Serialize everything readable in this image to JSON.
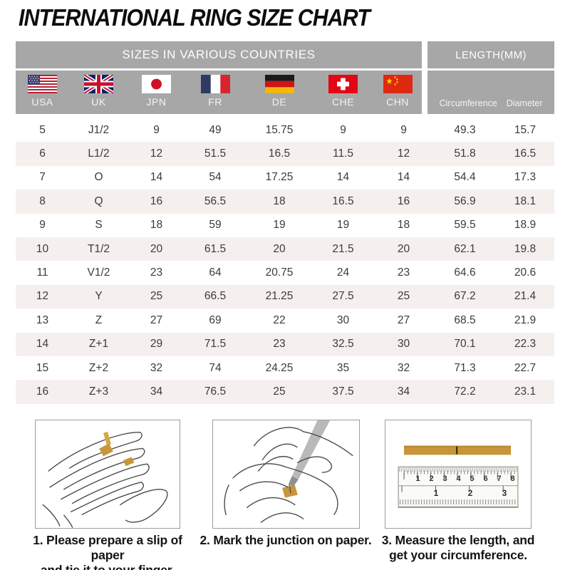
{
  "chart_data": {
    "type": "table",
    "title": "INTERNATIONAL RING SIZE CHART",
    "column_groups": [
      "SIZES IN VARIOUS COUNTRIES",
      "LENGTH(MM)"
    ],
    "columns": [
      "USA",
      "UK",
      "JPN",
      "FR",
      "DE",
      "CHE",
      "CHN",
      "Circumference",
      "Diameter"
    ],
    "rows": [
      [
        "5",
        "J1/2",
        "9",
        "49",
        "15.75",
        "9",
        "9",
        "49.3",
        "15.7"
      ],
      [
        "6",
        "L1/2",
        "12",
        "51.5",
        "16.5",
        "11.5",
        "12",
        "51.8",
        "16.5"
      ],
      [
        "7",
        "O",
        "14",
        "54",
        "17.25",
        "14",
        "14",
        "54.4",
        "17.3"
      ],
      [
        "8",
        "Q",
        "16",
        "56.5",
        "18",
        "16.5",
        "16",
        "56.9",
        "18.1"
      ],
      [
        "9",
        "S",
        "18",
        "59",
        "19",
        "19",
        "18",
        "59.5",
        "18.9"
      ],
      [
        "10",
        "T1/2",
        "20",
        "61.5",
        "20",
        "21.5",
        "20",
        "62.1",
        "19.8"
      ],
      [
        "11",
        "V1/2",
        "23",
        "64",
        "20.75",
        "24",
        "23",
        "64.6",
        "20.6"
      ],
      [
        "12",
        "Y",
        "25",
        "66.5",
        "21.25",
        "27.5",
        "25",
        "67.2",
        "21.4"
      ],
      [
        "13",
        "Z",
        "27",
        "69",
        "22",
        "30",
        "27",
        "68.5",
        "21.9"
      ],
      [
        "14",
        "Z+1",
        "29",
        "71.5",
        "23",
        "32.5",
        "30",
        "70.1",
        "22.3"
      ],
      [
        "15",
        "Z+2",
        "32",
        "74",
        "24.25",
        "35",
        "32",
        "71.3",
        "22.7"
      ],
      [
        "16",
        "Z+3",
        "34",
        "76.5",
        "25",
        "37.5",
        "34",
        "72.2",
        "23.1"
      ]
    ]
  },
  "instructions": {
    "steps": [
      {
        "caption_line1": "1. Please prepare a slip of paper",
        "caption_line2": "and tie it to your finger."
      },
      {
        "caption_line1": "2. Mark the junction on paper.",
        "caption_line2": ""
      },
      {
        "caption_line1": "3. Measure the length, and",
        "caption_line2": "get your circumference."
      }
    ],
    "ruler": {
      "cm_numbers": [
        "1",
        "2",
        "3",
        "4",
        "5",
        "6",
        "7",
        "8"
      ],
      "inch_numbers": [
        "1",
        "2",
        "3"
      ]
    }
  },
  "colors": {
    "header_gray": "#a7a7a7",
    "alt_row": "#f5f0ee",
    "paper_strip_gold": "#c8953b"
  }
}
